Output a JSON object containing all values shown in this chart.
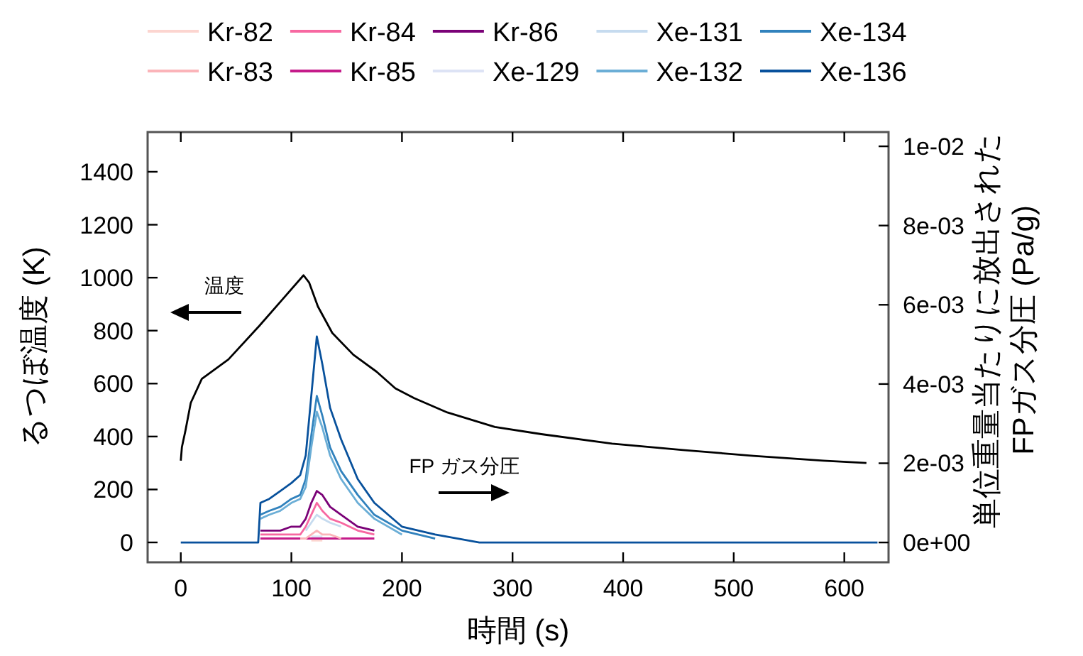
{
  "chart_data": {
    "type": "line",
    "xlabel": "時間 (s)",
    "ylabel": "るつぼ温度 (K)",
    "y2label": "単位重量当たりに放出された\nFPガス分圧 (Pa/g)",
    "x": [
      0,
      60,
      70,
      72,
      80,
      90,
      100,
      108,
      113,
      118,
      123,
      128,
      135,
      145,
      160,
      175,
      200,
      230,
      270,
      320,
      400,
      500,
      630
    ],
    "xlim": [
      -30,
      640
    ],
    "xticks": [
      0,
      100,
      200,
      300,
      400,
      500,
      600
    ],
    "ylim": [
      -75,
      1550
    ],
    "yticks": [
      0,
      200,
      400,
      600,
      800,
      1000,
      1200,
      1400
    ],
    "y2lim": [
      -0.0005,
      0.01036
    ],
    "y2ticks": [
      {
        "value": 0,
        "label": "0e+00"
      },
      {
        "value": 0.002,
        "label": "2e-03"
      },
      {
        "value": 0.004,
        "label": "4e-03"
      },
      {
        "value": 0.006,
        "label": "6e-03"
      },
      {
        "value": 0.008,
        "label": "8e-03"
      },
      {
        "value": 0.01,
        "label": "1e-02"
      }
    ],
    "legend": "top",
    "grid": false,
    "marker": "none",
    "line_style": "solid",
    "annotations": [
      "温度",
      "FP ガス分圧"
    ],
    "series": [
      {
        "color": "#000000",
        "x": [
          0,
          1,
          4,
          9,
          19,
          43,
          71,
          92,
          111,
          116,
          124,
          137,
          156,
          177,
          194,
          211,
          241,
          284,
          326,
          390,
          454,
          518,
          581,
          620
        ],
        "values": [
          309,
          360,
          418,
          527,
          618,
          691,
          818,
          918,
          1009,
          982,
          891,
          791,
          709,
          645,
          582,
          545,
          491,
          436,
          409,
          373,
          349,
          327,
          309,
          300
        ]
      },
      {
        "name": "Kr-82",
        "color": "#fcd5d0",
        "axis": "y2",
        "values": [
          null,
          null,
          null,
          null,
          null,
          null,
          null,
          null,
          null,
          5e-05,
          5e-05,
          5e-05,
          null,
          null,
          null,
          null,
          null,
          null,
          null,
          null,
          null,
          null,
          null
        ]
      },
      {
        "name": "Kr-83",
        "color": "#fbb4b9",
        "axis": "y2",
        "values": [
          null,
          null,
          null,
          null,
          null,
          null,
          null,
          0.0001,
          0.0001,
          0.0002,
          0.0003,
          0.0002,
          0.0002,
          0.0001,
          null,
          null,
          null,
          null,
          null,
          null,
          null,
          null,
          null
        ]
      },
      {
        "name": "Kr-84",
        "color": "#f768a1",
        "axis": "y2",
        "values": [
          null,
          null,
          null,
          0.0002,
          0.0002,
          0.0002,
          0.0002,
          0.0002,
          0.0004,
          0.0007,
          0.001,
          0.0008,
          0.0006,
          0.0005,
          0.0003,
          0.0002,
          null,
          null,
          null,
          null,
          null,
          null,
          null
        ]
      },
      {
        "name": "Kr-85",
        "color": "#c51b8a",
        "axis": "y2",
        "values": [
          null,
          null,
          null,
          0.0001,
          0.0001,
          0.0001,
          0.0001,
          0.0001,
          0.0001,
          0.0001,
          0.0001,
          0.0001,
          0.0001,
          0.0001,
          0.0001,
          0.0001,
          null,
          null,
          null,
          null,
          null,
          null,
          null
        ]
      },
      {
        "name": "Kr-86",
        "color": "#7a0177",
        "axis": "y2",
        "values": [
          null,
          null,
          null,
          0.0003,
          0.0003,
          0.0003,
          0.0004,
          0.0004,
          0.0006,
          0.001,
          0.0013,
          0.0012,
          0.0009,
          0.0007,
          0.0004,
          0.0003,
          null,
          null,
          null,
          null,
          null,
          null,
          null
        ]
      },
      {
        "name": "Xe-129",
        "color": "#dde3f5",
        "axis": "y2",
        "values": [
          null,
          null,
          null,
          null,
          null,
          null,
          null,
          null,
          null,
          0.00015,
          0.00015,
          0.00015,
          null,
          null,
          null,
          null,
          null,
          null,
          null,
          null,
          null,
          null,
          null
        ]
      },
      {
        "name": "Xe-131",
        "color": "#c6dbef",
        "axis": "y2",
        "values": [
          null,
          null,
          null,
          null,
          null,
          null,
          null,
          null,
          0.0003,
          0.0005,
          0.0007,
          0.0006,
          0.0005,
          0.0004,
          null,
          null,
          null,
          null,
          null,
          null,
          null,
          null,
          null
        ]
      },
      {
        "name": "Xe-132",
        "color": "#6baed6",
        "axis": "y2",
        "values": [
          null,
          null,
          null,
          0.0006,
          0.0007,
          0.0008,
          0.001,
          0.0011,
          0.0014,
          0.0024,
          0.0033,
          0.0029,
          0.0022,
          0.0016,
          0.001,
          0.0006,
          0.0002,
          null,
          null,
          null,
          null,
          null,
          null
        ]
      },
      {
        "name": "Xe-134",
        "color": "#3182bd",
        "axis": "y2",
        "values": [
          null,
          null,
          null,
          0.0007,
          0.0008,
          0.0009,
          0.0011,
          0.0012,
          0.0016,
          0.0027,
          0.0037,
          0.0032,
          0.0024,
          0.0018,
          0.0012,
          0.0007,
          0.0003,
          0.0001,
          null,
          null,
          null,
          null,
          null
        ]
      },
      {
        "name": "Xe-136",
        "color": "#08519c",
        "axis": "y2",
        "values": [
          0,
          0,
          0,
          0.001,
          0.0011,
          0.0013,
          0.0015,
          0.0017,
          0.0022,
          0.0037,
          0.0052,
          0.0045,
          0.0034,
          0.0026,
          0.0016,
          0.001,
          0.0004,
          0.0002,
          0,
          0,
          0,
          0,
          0
        ]
      }
    ]
  }
}
